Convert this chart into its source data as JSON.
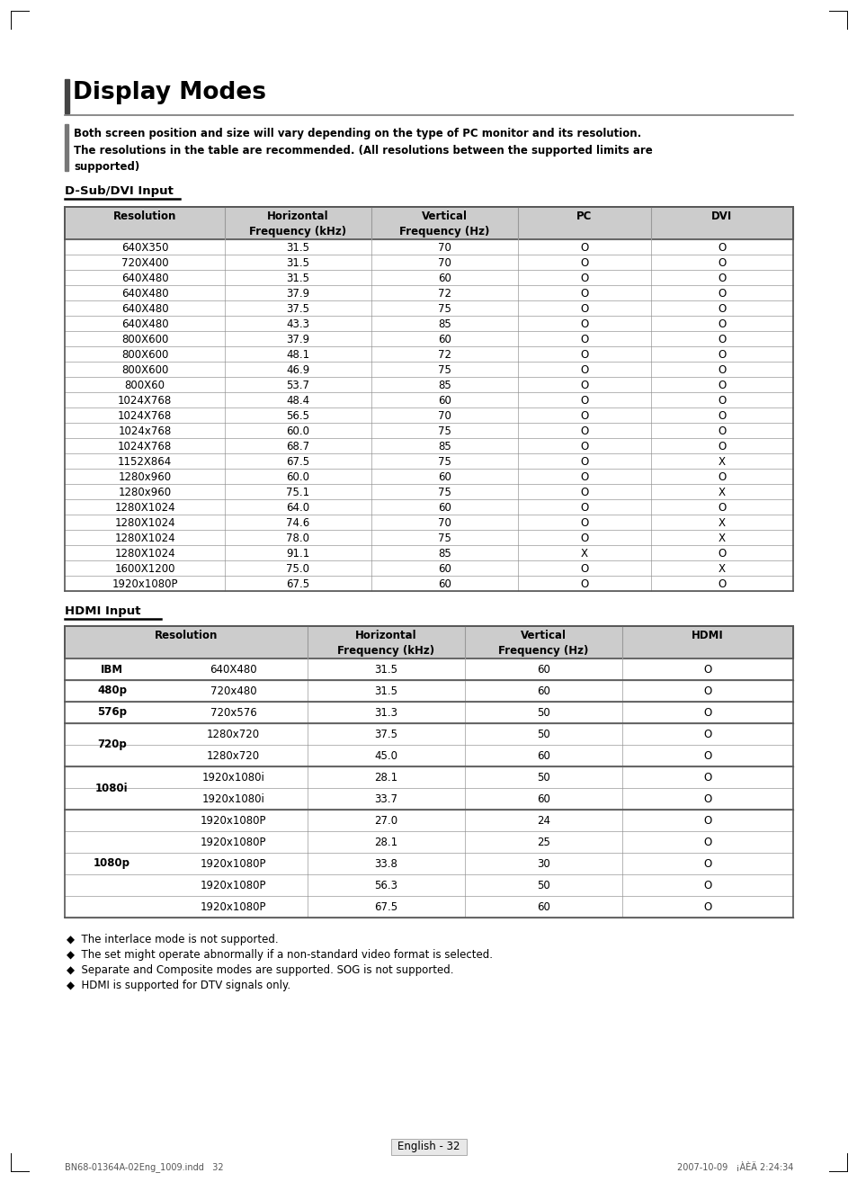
{
  "title": "Display Modes",
  "subtitle": "Both screen position and size will vary depending on the type of PC monitor and its resolution.\nThe resolutions in the table are recommended. (All resolutions between the supported limits are\nsupported)",
  "dsub_label": "D-Sub/DVI Input",
  "hdmi_label": "HDMI Input",
  "dsub_headers": [
    "Resolution",
    "Horizontal\nFrequency (kHz)",
    "Vertical\nFrequency (Hz)",
    "PC",
    "DVI"
  ],
  "dsub_rows": [
    [
      "640X350",
      "31.5",
      "70",
      "O",
      "O"
    ],
    [
      "720X400",
      "31.5",
      "70",
      "O",
      "O"
    ],
    [
      "640X480",
      "31.5",
      "60",
      "O",
      "O"
    ],
    [
      "640X480",
      "37.9",
      "72",
      "O",
      "O"
    ],
    [
      "640X480",
      "37.5",
      "75",
      "O",
      "O"
    ],
    [
      "640X480",
      "43.3",
      "85",
      "O",
      "O"
    ],
    [
      "800X600",
      "37.9",
      "60",
      "O",
      "O"
    ],
    [
      "800X600",
      "48.1",
      "72",
      "O",
      "O"
    ],
    [
      "800X600",
      "46.9",
      "75",
      "O",
      "O"
    ],
    [
      "800X60",
      "53.7",
      "85",
      "O",
      "O"
    ],
    [
      "1024X768",
      "48.4",
      "60",
      "O",
      "O"
    ],
    [
      "1024X768",
      "56.5",
      "70",
      "O",
      "O"
    ],
    [
      "1024x768",
      "60.0",
      "75",
      "O",
      "O"
    ],
    [
      "1024X768",
      "68.7",
      "85",
      "O",
      "O"
    ],
    [
      "1152X864",
      "67.5",
      "75",
      "O",
      "X"
    ],
    [
      "1280x960",
      "60.0",
      "60",
      "O",
      "O"
    ],
    [
      "1280x960",
      "75.1",
      "75",
      "O",
      "X"
    ],
    [
      "1280X1024",
      "64.0",
      "60",
      "O",
      "O"
    ],
    [
      "1280X1024",
      "74.6",
      "70",
      "O",
      "X"
    ],
    [
      "1280X1024",
      "78.0",
      "75",
      "O",
      "X"
    ],
    [
      "1280X1024",
      "91.1",
      "85",
      "X",
      "O"
    ],
    [
      "1600X1200",
      "75.0",
      "60",
      "O",
      "X"
    ],
    [
      "1920x1080P",
      "67.5",
      "60",
      "O",
      "O"
    ]
  ],
  "hdmi_rows": [
    [
      "IBM",
      "640X480",
      "31.5",
      "60",
      "O"
    ],
    [
      "480p",
      "720x480",
      "31.5",
      "60",
      "O"
    ],
    [
      "576p",
      "720x576",
      "31.3",
      "50",
      "O"
    ],
    [
      "720p",
      "1280x720",
      "37.5",
      "50",
      "O"
    ],
    [
      "720p",
      "1280x720",
      "45.0",
      "60",
      "O"
    ],
    [
      "1080i",
      "1920x1080i",
      "28.1",
      "50",
      "O"
    ],
    [
      "1080i",
      "1920x1080i",
      "33.7",
      "60",
      "O"
    ],
    [
      "1080p",
      "1920x1080P",
      "27.0",
      "24",
      "O"
    ],
    [
      "1080p",
      "1920x1080P",
      "28.1",
      "25",
      "O"
    ],
    [
      "1080p",
      "1920x1080P",
      "33.8",
      "30",
      "O"
    ],
    [
      "1080p",
      "1920x1080P",
      "56.3",
      "50",
      "O"
    ],
    [
      "1080p",
      "1920x1080P",
      "67.5",
      "60",
      "O"
    ]
  ],
  "notes": [
    "The interlace mode is not supported.",
    "The set might operate abnormally if a non-standard video format is selected.",
    "Separate and Composite modes are supported. SOG is not supported.",
    "HDMI is supported for DTV signals only."
  ],
  "footer_left": "BN68-01364A-02Eng_1009.indd   32",
  "footer_right": "2007-10-09   ¡ÀÈÄ 2:24:34",
  "page_num": "English - 32",
  "bg_color": "#ffffff",
  "header_bg": "#cccccc",
  "border_color": "#999999",
  "border_color_heavy": "#555555"
}
